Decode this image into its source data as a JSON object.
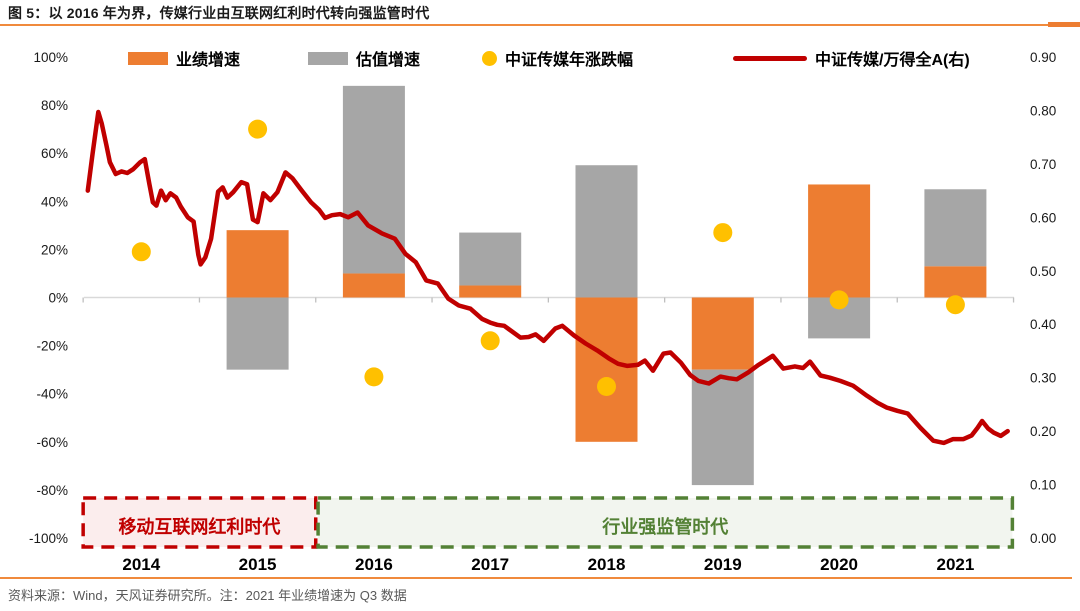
{
  "chart_data": {
    "type": "bar",
    "title": "图 5：以 2016 年为界，传媒行业由互联网红利时代转向强监管时代",
    "categories": [
      "2014",
      "2015",
      "2016",
      "2017",
      "2018",
      "2019",
      "2020",
      "2021"
    ],
    "legend_position": "top",
    "grid": "off",
    "left_axis": {
      "min": -100,
      "max": 100,
      "unit": "%",
      "ticks": [
        "100%",
        "80%",
        "60%",
        "40%",
        "20%",
        "0%",
        "-20%",
        "-40%",
        "-60%",
        "-80%",
        "-100%"
      ]
    },
    "right_axis": {
      "min": 0.0,
      "max": 0.9,
      "ticks": [
        "0.90",
        "0.80",
        "0.70",
        "0.60",
        "0.50",
        "0.40",
        "0.30",
        "0.20",
        "0.10",
        "0.00"
      ]
    },
    "series": [
      {
        "name": "业绩增速",
        "type": "bar",
        "axis": "left",
        "unit": "%",
        "color": "#ED7D31",
        "values": [
          null,
          28,
          10,
          5,
          -60,
          -30,
          47,
          13
        ]
      },
      {
        "name": "估值增速",
        "type": "bar",
        "axis": "left",
        "unit": "%",
        "color": "#A6A6A6",
        "stacked_with_previous": true,
        "values": [
          null,
          -30,
          78,
          22,
          55,
          -48,
          -17,
          32
        ]
      },
      {
        "name": "中证传媒年涨跌幅",
        "type": "scatter",
        "axis": "left",
        "unit": "%",
        "color": "#FFC000",
        "values": [
          19,
          70,
          -33,
          -18,
          -37,
          27,
          -1,
          -3
        ]
      },
      {
        "name": "中证传媒/万得全A(右)",
        "type": "line",
        "axis": "right",
        "color": "#C00000",
        "points": [
          [
            2013.54,
            0.65
          ],
          [
            2013.58,
            0.718
          ],
          [
            2013.63,
            0.797
          ],
          [
            2013.66,
            0.775
          ],
          [
            2013.7,
            0.735
          ],
          [
            2013.73,
            0.703
          ],
          [
            2013.78,
            0.681
          ],
          [
            2013.83,
            0.686
          ],
          [
            2013.88,
            0.683
          ],
          [
            2013.93,
            0.69
          ],
          [
            2013.99,
            0.703
          ],
          [
            2014.03,
            0.709
          ],
          [
            2014.07,
            0.662
          ],
          [
            2014.1,
            0.628
          ],
          [
            2014.13,
            0.622
          ],
          [
            2014.17,
            0.65
          ],
          [
            2014.21,
            0.632
          ],
          [
            2014.25,
            0.645
          ],
          [
            2014.3,
            0.637
          ],
          [
            2014.34,
            0.62
          ],
          [
            2014.4,
            0.6
          ],
          [
            2014.45,
            0.592
          ],
          [
            2014.49,
            0.53
          ],
          [
            2014.51,
            0.512
          ],
          [
            2014.55,
            0.525
          ],
          [
            2014.6,
            0.56
          ],
          [
            2014.66,
            0.648
          ],
          [
            2014.7,
            0.656
          ],
          [
            2014.74,
            0.637
          ],
          [
            2014.79,
            0.647
          ],
          [
            2014.86,
            0.666
          ],
          [
            2014.91,
            0.662
          ],
          [
            2014.96,
            0.596
          ],
          [
            2015.0,
            0.591
          ],
          [
            2015.05,
            0.645
          ],
          [
            2015.11,
            0.632
          ],
          [
            2015.17,
            0.647
          ],
          [
            2015.24,
            0.684
          ],
          [
            2015.3,
            0.673
          ],
          [
            2015.38,
            0.65
          ],
          [
            2015.46,
            0.628
          ],
          [
            2015.53,
            0.614
          ],
          [
            2015.58,
            0.599
          ],
          [
            2015.64,
            0.604
          ],
          [
            2015.71,
            0.606
          ],
          [
            2015.78,
            0.6
          ],
          [
            2015.86,
            0.609
          ],
          [
            2015.95,
            0.585
          ],
          [
            2016.07,
            0.57
          ],
          [
            2016.18,
            0.56
          ],
          [
            2016.27,
            0.532
          ],
          [
            2016.36,
            0.516
          ],
          [
            2016.45,
            0.482
          ],
          [
            2016.55,
            0.476
          ],
          [
            2016.64,
            0.448
          ],
          [
            2016.73,
            0.435
          ],
          [
            2016.83,
            0.429
          ],
          [
            2016.93,
            0.41
          ],
          [
            2017.0,
            0.403
          ],
          [
            2017.06,
            0.399
          ],
          [
            2017.12,
            0.397
          ],
          [
            2017.26,
            0.375
          ],
          [
            2017.33,
            0.376
          ],
          [
            2017.39,
            0.381
          ],
          [
            2017.46,
            0.369
          ],
          [
            2017.56,
            0.392
          ],
          [
            2017.62,
            0.397
          ],
          [
            2017.72,
            0.379
          ],
          [
            2017.82,
            0.364
          ],
          [
            2017.92,
            0.351
          ],
          [
            2018.02,
            0.336
          ],
          [
            2018.1,
            0.326
          ],
          [
            2018.18,
            0.322
          ],
          [
            2018.27,
            0.324
          ],
          [
            2018.33,
            0.332
          ],
          [
            2018.4,
            0.313
          ],
          [
            2018.49,
            0.345
          ],
          [
            2018.55,
            0.347
          ],
          [
            2018.64,
            0.328
          ],
          [
            2018.72,
            0.305
          ],
          [
            2018.79,
            0.294
          ],
          [
            2018.88,
            0.289
          ],
          [
            2018.98,
            0.302
          ],
          [
            2019.05,
            0.299
          ],
          [
            2019.12,
            0.297
          ],
          [
            2019.22,
            0.31
          ],
          [
            2019.3,
            0.323
          ],
          [
            2019.43,
            0.341
          ],
          [
            2019.52,
            0.317
          ],
          [
            2019.62,
            0.321
          ],
          [
            2019.69,
            0.318
          ],
          [
            2019.75,
            0.33
          ],
          [
            2019.84,
            0.304
          ],
          [
            2019.92,
            0.3
          ],
          [
            2020.01,
            0.294
          ],
          [
            2020.12,
            0.285
          ],
          [
            2020.24,
            0.266
          ],
          [
            2020.33,
            0.253
          ],
          [
            2020.41,
            0.244
          ],
          [
            2020.5,
            0.238
          ],
          [
            2020.59,
            0.233
          ],
          [
            2020.7,
            0.206
          ],
          [
            2020.81,
            0.182
          ],
          [
            2020.9,
            0.178
          ],
          [
            2020.98,
            0.185
          ],
          [
            2021.07,
            0.185
          ],
          [
            2021.14,
            0.192
          ],
          [
            2021.19,
            0.206
          ],
          [
            2021.23,
            0.219
          ],
          [
            2021.28,
            0.205
          ],
          [
            2021.33,
            0.197
          ],
          [
            2021.39,
            0.191
          ],
          [
            2021.45,
            0.2
          ]
        ]
      }
    ],
    "annotations": [
      {
        "label": "移动互联网红利时代",
        "x_from": 2013.5,
        "x_to": 2015.5,
        "border_color": "#C00000",
        "fill_color": "rgba(192,0,0,0.07)",
        "text_color": "#C00000"
      },
      {
        "label": "行业强监管时代",
        "x_from": 2015.52,
        "x_to": 2021.49,
        "border_color": "#538135",
        "fill_color": "rgba(84,130,53,0.08)",
        "text_color": "#538135"
      }
    ]
  },
  "footer": {
    "source_note": "资料来源：Wind，天风证券研究所。注：2021 年业绩增速为 Q3 数据"
  },
  "colors": {
    "accent_orange": "#ED7D31",
    "title_rule_orange": "#F08A3C",
    "bar_gray": "#A6A6A6",
    "dot_yellow": "#FFC000",
    "line_red": "#C00000",
    "era_red": "#C00000",
    "era_green": "#538135",
    "axis_line_gray": "#D9D9D9"
  }
}
